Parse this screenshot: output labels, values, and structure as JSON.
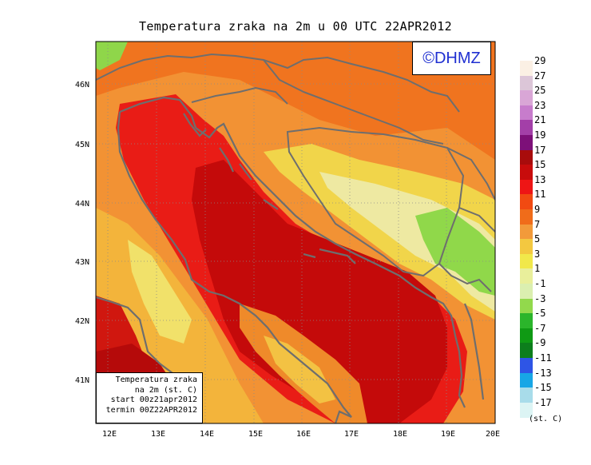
{
  "title": "Temperatura zraka na 2m u 00 UTC 22APR2012",
  "logo": "©DHMZ",
  "info_box": {
    "line1": "Temperatura zraka",
    "line2": "na 2m (st. C)",
    "line3": "start 00z21apr2012",
    "line4": "termin 00Z22APR2012"
  },
  "axes": {
    "lon_ticks": [
      "12E",
      "13E",
      "14E",
      "15E",
      "16E",
      "17E",
      "18E",
      "19E",
      "20E"
    ],
    "lat_ticks": [
      "41N",
      "42N",
      "43N",
      "44N",
      "45N",
      "46N"
    ]
  },
  "colorbar": {
    "units": "(st. C)",
    "labels": [
      "29",
      "27",
      "25",
      "23",
      "21",
      "19",
      "17",
      "15",
      "13",
      "11",
      "9",
      "7",
      "5",
      "3",
      "1",
      "-1",
      "-3",
      "-5",
      "-7",
      "-9",
      "-11",
      "-13",
      "-15",
      "-17"
    ],
    "colors": [
      "#fbf0e4",
      "#dcc6d8",
      "#d9a6d6",
      "#c77ccc",
      "#a33fa8",
      "#7d1079",
      "#a80c0c",
      "#c80c0c",
      "#ee1515",
      "#f14a12",
      "#f06c1a",
      "#f29a3a",
      "#f3c840",
      "#f1e84a",
      "#e9ef9b",
      "#dbefb0",
      "#92d94c",
      "#2bb52b",
      "#0f9a14",
      "#0c7e1c",
      "#2e55e6",
      "#17a6e6",
      "#a8dcea",
      "#dcf4f4"
    ]
  },
  "colors": {
    "sea": "#c40a0a",
    "sea_coastal": "#e91b16",
    "land_warm": "#f2862a",
    "land_mild": "#f3c243",
    "land_cool": "#efe89a",
    "land_cold": "#8ed94a",
    "coastline": "#6e6e6e"
  }
}
